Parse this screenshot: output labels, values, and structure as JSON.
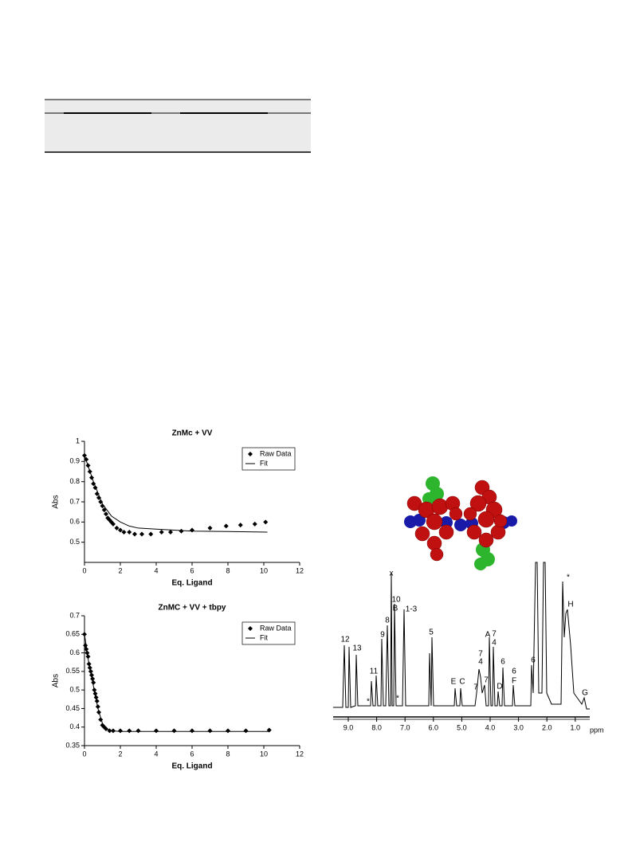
{
  "chart_data": [
    {
      "type": "scatter",
      "title": "ZnMc + VV",
      "x_label": "Eq. Ligand",
      "y_label": "Abs",
      "xlim": [
        0,
        12
      ],
      "xticks": [
        0,
        2,
        4,
        6,
        8,
        10,
        12
      ],
      "ylim": [
        0.4,
        1
      ],
      "yticks": [
        0.5,
        0.6,
        0.7,
        0.8,
        0.9,
        1
      ],
      "legend": "upper right",
      "series": [
        {
          "name": "Raw Data",
          "color": "#000000",
          "style": "marker",
          "x": [
            0,
            0.1,
            0.2,
            0.3,
            0.4,
            0.5,
            0.6,
            0.7,
            0.8,
            0.9,
            1.0,
            1.1,
            1.2,
            1.3,
            1.4,
            1.5,
            1.6,
            1.8,
            2.0,
            2.2,
            2.5,
            2.8,
            3.2,
            3.7,
            4.3,
            4.8,
            5.4,
            6.0,
            7.0,
            7.9,
            8.7,
            9.5,
            10.1
          ],
          "values": [
            0.93,
            0.91,
            0.88,
            0.85,
            0.82,
            0.79,
            0.77,
            0.74,
            0.72,
            0.7,
            0.68,
            0.66,
            0.64,
            0.62,
            0.61,
            0.6,
            0.59,
            0.57,
            0.56,
            0.55,
            0.55,
            0.54,
            0.54,
            0.54,
            0.55,
            0.55,
            0.555,
            0.56,
            0.57,
            0.58,
            0.585,
            0.59,
            0.6
          ]
        },
        {
          "name": "Fit",
          "color": "#000000",
          "style": "line",
          "x": [
            0,
            0.5,
            1,
            1.5,
            2,
            2.5,
            3,
            4,
            5,
            6,
            8,
            10.2
          ],
          "values": [
            0.93,
            0.8,
            0.69,
            0.63,
            0.6,
            0.58,
            0.57,
            0.565,
            0.56,
            0.555,
            0.553,
            0.55
          ]
        }
      ]
    },
    {
      "type": "scatter",
      "title": "ZnMC + VV + tbpy",
      "x_label": "Eq. Ligand",
      "y_label": "Abs",
      "xlim": [
        0,
        12
      ],
      "xticks": [
        0,
        2,
        4,
        6,
        8,
        10,
        12
      ],
      "ylim": [
        0.35,
        0.7
      ],
      "yticks": [
        0.35,
        0.4,
        0.45,
        0.5,
        0.55,
        0.6,
        0.65,
        0.7
      ],
      "legend": "upper right",
      "series": [
        {
          "name": "Raw Data",
          "color": "#000000",
          "style": "marker",
          "x": [
            0,
            0.05,
            0.1,
            0.15,
            0.2,
            0.25,
            0.3,
            0.35,
            0.4,
            0.45,
            0.5,
            0.55,
            0.6,
            0.65,
            0.7,
            0.75,
            0.8,
            0.9,
            1.0,
            1.1,
            1.2,
            1.4,
            1.6,
            2.0,
            2.5,
            3.0,
            4.0,
            5.0,
            6.0,
            7.0,
            8.0,
            9.0,
            10.3
          ],
          "values": [
            0.65,
            0.62,
            0.61,
            0.6,
            0.59,
            0.57,
            0.56,
            0.55,
            0.54,
            0.53,
            0.52,
            0.5,
            0.49,
            0.48,
            0.47,
            0.455,
            0.44,
            0.42,
            0.405,
            0.4,
            0.395,
            0.39,
            0.39,
            0.39,
            0.39,
            0.39,
            0.39,
            0.39,
            0.39,
            0.39,
            0.39,
            0.39,
            0.392
          ]
        },
        {
          "name": "Fit",
          "color": "#000000",
          "style": "line",
          "x": [
            0,
            0.25,
            0.5,
            0.75,
            1,
            1.25,
            1.5,
            2,
            4,
            10.3
          ],
          "values": [
            0.65,
            0.57,
            0.51,
            0.45,
            0.41,
            0.395,
            0.39,
            0.388,
            0.388,
            0.388
          ]
        }
      ]
    }
  ],
  "spectrum": {
    "ticks": [
      {
        "value": 9,
        "label": "9.0"
      },
      {
        "value": 8,
        "label": "8.0"
      },
      {
        "value": 7,
        "label": "7.0"
      },
      {
        "value": 6,
        "label": "6.0"
      },
      {
        "value": 5,
        "label": "5.0"
      },
      {
        "value": 4,
        "label": "4.0"
      },
      {
        "value": 3,
        "label": "3.0"
      },
      {
        "value": 2,
        "label": "2.0"
      },
      {
        "value": 1,
        "label": "1.0"
      }
    ],
    "unit": "ppm",
    "peak_labels": [
      "12",
      "13",
      "11",
      "9",
      "8",
      "10",
      "B",
      "x",
      "1-3",
      "5",
      "*",
      "*",
      "E",
      "C",
      "7",
      "7",
      "7",
      "4",
      "A",
      "7",
      "4",
      "D",
      "6",
      "6",
      "F",
      "6",
      "*",
      "H",
      "G"
    ]
  }
}
